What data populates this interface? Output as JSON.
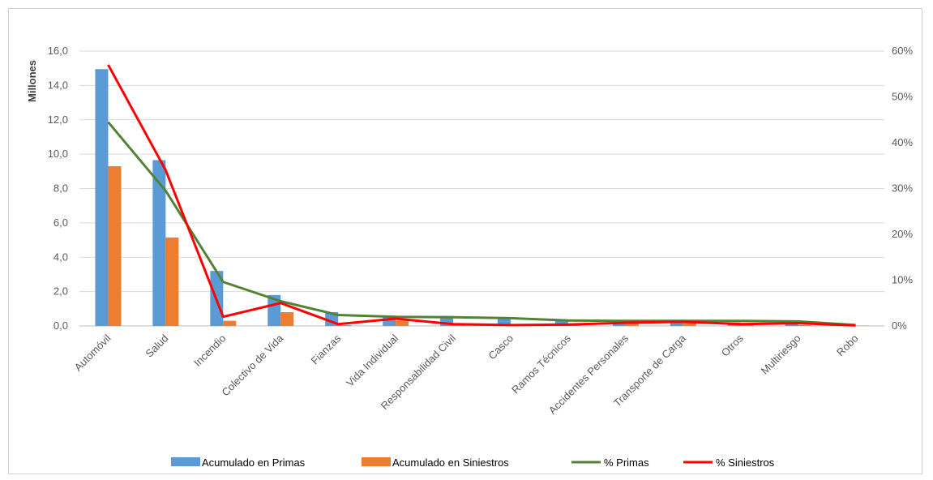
{
  "chart_data": {
    "type": "bar",
    "title": "",
    "ylabel": "Millones",
    "ylim": [
      0,
      16
    ],
    "y_ticks": [
      "0,0",
      "2,0",
      "4,0",
      "6,0",
      "8,0",
      "10,0",
      "12,0",
      "14,0",
      "16,0"
    ],
    "y2lim": [
      0,
      60
    ],
    "y2_ticks": [
      "0%",
      "10%",
      "20%",
      "30%",
      "40%",
      "50%",
      "60%"
    ],
    "grid": true,
    "legend_position": "bottom",
    "categories": [
      "Automóvil",
      "Salud",
      "Incendio",
      "Colectivo de Vida",
      "Fianzas",
      "Vida Individual",
      "Responsabilidad Civil",
      "Casco",
      "Ramos Técnicos",
      "Accidentes Personales",
      "Transporte de Carga",
      "Otros",
      "Multiriesgo",
      "Robo"
    ],
    "series": [
      {
        "name": "Acumulado en Primas",
        "type": "bar",
        "axis": "left",
        "color": "#5B9BD5",
        "values": [
          14.95,
          9.65,
          3.2,
          1.8,
          0.8,
          0.6,
          0.58,
          0.5,
          0.35,
          0.2,
          0.3,
          0.2,
          0.15,
          0.05
        ]
      },
      {
        "name": "Acumulado en Siniestros",
        "type": "bar",
        "axis": "left",
        "color": "#ED7D31",
        "values": [
          9.3,
          5.15,
          0.3,
          0.8,
          0.05,
          0.3,
          0.1,
          0.05,
          0.05,
          0.15,
          0.3,
          0.05,
          0.05,
          0.02
        ]
      },
      {
        "name": "% Primas",
        "type": "line",
        "axis": "right",
        "color": "#548235",
        "values": [
          44.5,
          29.5,
          9.6,
          5.4,
          2.4,
          2.0,
          1.9,
          1.7,
          1.2,
          1.1,
          1.1,
          1.1,
          1.0,
          0.2
        ]
      },
      {
        "name": "% Siniestros",
        "type": "line",
        "axis": "right",
        "color": "#FF0000",
        "values": [
          57.0,
          34.0,
          2.0,
          5.0,
          0.4,
          1.6,
          0.4,
          0.2,
          0.3,
          0.7,
          0.9,
          0.4,
          0.6,
          0.1
        ]
      }
    ]
  }
}
